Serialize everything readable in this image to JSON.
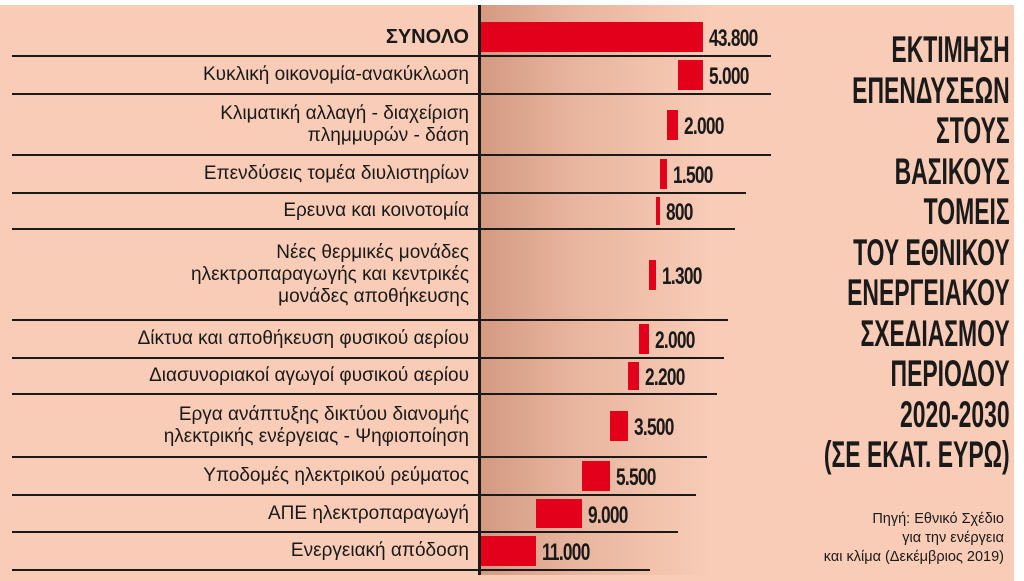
{
  "chart_data": {
    "type": "bar",
    "orientation": "horizontal",
    "style": "waterfall",
    "title_lines": [
      "ΕΚΤΙΜΗΣΗ",
      "ΕΠΕΝΔΥΣΕΩΝ",
      "ΣΤΟΥΣ",
      "ΒΑΣΙΚΟΥΣ",
      "ΤΟΜΕΙΣ",
      "ΤΟΥ ΕΘΝΙΚΟΥ",
      "ΕΝΕΡΓΕΙΑΚΟΥ",
      "ΣΧΕΔΙΑΣΜΟΥ",
      "ΠΕΡΙΟΔΟΥ",
      "2020-2030",
      "(ΣΕ ΕΚΑΤ. ΕΥΡΩ)"
    ],
    "categories": [
      "ΣΥΝΟΛΟ",
      "Κυκλική οικονομία-ανακύκλωση",
      "Κλιματική αλλαγή - διαχείριση\nπλημμυρών - δάση",
      "Επενδύσεις τομέα διυλιστηρίων",
      "Ερευνα και κοινοτομία",
      "Νέες θερμικές μονάδες\nηλεκτροπαραγωγής και κεντρικές\nμονάδες αποθήκευσης",
      "Δίκτυα και αποθήκευση φυσικού αερίου",
      "Διασυνοριακοί αγωγοί φυσικού αερίου",
      "Εργα ανάπτυξης δικτύου διανομής\nηλεκτρικής ενέργειας - Ψηφιοποίηση",
      "Υποδομές ηλεκτρικού ρεύματος",
      "ΑΠΕ ηλεκτροπαραγωγή",
      "Ενεργειακή απόδοση"
    ],
    "values": [
      43800,
      5000,
      2000,
      1500,
      800,
      1300,
      2000,
      2200,
      3500,
      5500,
      9000,
      11000
    ],
    "value_labels": [
      "43.800",
      "5.000",
      "2.000",
      "1.500",
      "800",
      "1.300",
      "2.000",
      "2.200",
      "3.500",
      "5.500",
      "9.000",
      "11.000"
    ],
    "xlim": [
      0,
      43800
    ],
    "grid": false,
    "legend": "none",
    "colors": {
      "bar": "#e2001a",
      "background": "#f8ccb7",
      "text": "#1a1a1a"
    }
  },
  "source_lines": [
    "Πηγή: Εθνικό Σχέδιο",
    "για την ενέργεια",
    "και κλίμα (Δεκέμβριος 2019)"
  ]
}
